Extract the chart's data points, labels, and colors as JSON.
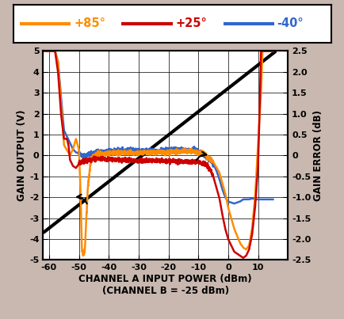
{
  "xlabel": "CHANNEL A INPUT POWER (dBm)",
  "xlabel2": "(CHANNEL B = -25 dBm)",
  "ylabel_left": "GAIN OUTPUT (V)",
  "ylabel_right": "GAIN ERROR (dB)",
  "xlim": [
    -62,
    20
  ],
  "ylim_left": [
    -5,
    5
  ],
  "ylim_right": [
    -2.5,
    2.5
  ],
  "xticks": [
    -60,
    -50,
    -40,
    -30,
    -20,
    -10,
    0,
    10
  ],
  "yticks_left": [
    -5,
    -4,
    -3,
    -2,
    -1,
    0,
    1,
    2,
    3,
    4,
    5
  ],
  "yticks_right": [
    -2.5,
    -2.0,
    -1.5,
    -1.0,
    -0.5,
    0,
    0.5,
    1.0,
    1.5,
    2.0,
    2.5
  ],
  "color_orange": "#FF8C00",
  "color_red": "#CC0000",
  "color_blue": "#3366CC",
  "color_black": "#000000",
  "legend_labels": [
    "+85°",
    "+25°",
    "-40°"
  ],
  "bg_outer": "#C8B8B0",
  "bg_plot": "#FFFFFF",
  "diag_x0": -62,
  "diag_y0": -3.7,
  "diag_x1": 16,
  "diag_y1": 5.0
}
